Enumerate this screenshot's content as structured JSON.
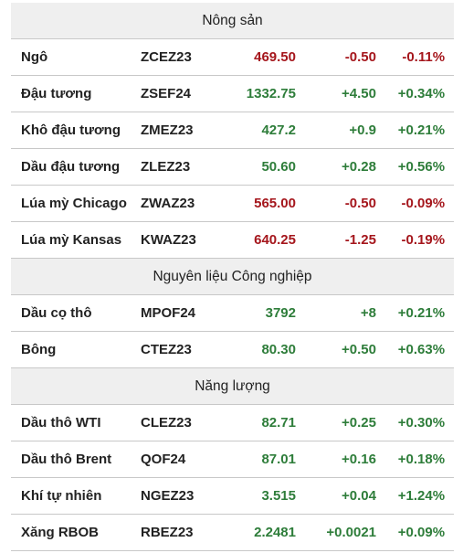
{
  "colors": {
    "up": "#2e7d3a",
    "down": "#a5161c",
    "section_bg": "#efefef",
    "border": "#c8c8c8"
  },
  "sections": [
    {
      "title": "Nông sản",
      "rows": [
        {
          "name": "Ngô",
          "code": "ZCEZ23",
          "price": "469.50",
          "change": "-0.50",
          "pct": "-0.11%",
          "dir": "down"
        },
        {
          "name": "Đậu tương",
          "code": "ZSEF24",
          "price": "1332.75",
          "change": "+4.50",
          "pct": "+0.34%",
          "dir": "up"
        },
        {
          "name": "Khô đậu tương",
          "code": "ZMEZ23",
          "price": "427.2",
          "change": "+0.9",
          "pct": "+0.21%",
          "dir": "up"
        },
        {
          "name": "Dầu đậu tương",
          "code": "ZLEZ23",
          "price": "50.60",
          "change": "+0.28",
          "pct": "+0.56%",
          "dir": "up"
        },
        {
          "name": "Lúa mỳ Chicago",
          "code": "ZWAZ23",
          "price": "565.00",
          "change": "-0.50",
          "pct": "-0.09%",
          "dir": "down"
        },
        {
          "name": "Lúa mỳ Kansas",
          "code": "KWAZ23",
          "price": "640.25",
          "change": "-1.25",
          "pct": "-0.19%",
          "dir": "down"
        }
      ]
    },
    {
      "title": "Nguyên liệu Công nghiệp",
      "rows": [
        {
          "name": "Dầu cọ thô",
          "code": "MPOF24",
          "price": "3792",
          "change": "+8",
          "pct": "+0.21%",
          "dir": "up"
        },
        {
          "name": "Bông",
          "code": "CTEZ23",
          "price": "80.30",
          "change": "+0.50",
          "pct": "+0.63%",
          "dir": "up"
        }
      ]
    },
    {
      "title": "Năng lượng",
      "rows": [
        {
          "name": "Dầu thô WTI",
          "code": "CLEZ23",
          "price": "82.71",
          "change": "+0.25",
          "pct": "+0.30%",
          "dir": "up"
        },
        {
          "name": "Dầu thô Brent",
          "code": "QOF24",
          "price": "87.01",
          "change": "+0.16",
          "pct": "+0.18%",
          "dir": "up"
        },
        {
          "name": "Khí tự nhiên",
          "code": "NGEZ23",
          "price": "3.515",
          "change": "+0.04",
          "pct": "+1.24%",
          "dir": "up"
        },
        {
          "name": "Xăng RBOB",
          "code": "RBEZ23",
          "price": "2.2481",
          "change": "+0.0021",
          "pct": "+0.09%",
          "dir": "up"
        }
      ]
    }
  ]
}
